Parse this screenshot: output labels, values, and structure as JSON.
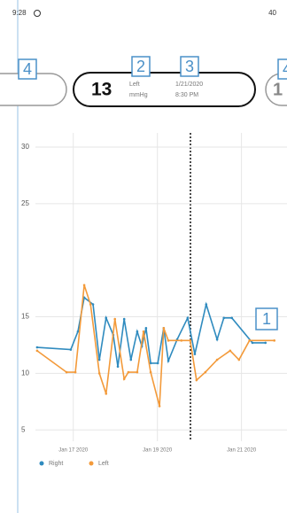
{
  "status_bar": {
    "time": "9:28",
    "battery": "40"
  },
  "callouts": [
    "4",
    "2",
    "3",
    "4",
    "1"
  ],
  "card": {
    "value": "13",
    "side": "Left",
    "unit": "mmHg",
    "date": "1/21/2020",
    "time": "8:30 PM"
  },
  "next_card": {
    "value": "1"
  },
  "chart_data": {
    "type": "line",
    "xlim": [
      16.1,
      21.85
    ],
    "xticks": [
      {
        "value": 17,
        "label": "Jan 17 2020"
      },
      {
        "value": 19,
        "label": "Jan 19 2020"
      },
      {
        "value": 21,
        "label": "Jan 21 2020"
      }
    ],
    "ylim": [
      4,
      30
    ],
    "yticks": [
      5,
      10,
      15,
      25,
      30
    ],
    "grid": true,
    "legend": "bottom-left",
    "series": [
      {
        "name": "Right",
        "color": "#2f8bbf",
        "x": [
          16.14,
          16.94,
          17.11,
          17.26,
          17.47,
          17.62,
          17.78,
          17.95,
          18.06,
          18.21,
          18.37,
          18.52,
          18.63,
          18.73,
          18.84,
          19.01,
          19.15,
          19.26,
          19.47,
          19.72,
          19.89,
          20.16,
          20.42,
          20.58,
          20.77,
          21.26,
          21.57
        ],
        "values": [
          12.3,
          12.1,
          13.7,
          16.7,
          16.1,
          11.2,
          14.9,
          13.4,
          10.6,
          14.8,
          11.2,
          13.7,
          12.4,
          14,
          10.9,
          10.9,
          14,
          11.1,
          13,
          14.9,
          11.7,
          16.1,
          13,
          14.9,
          14.9,
          12.7,
          12.7
        ]
      },
      {
        "name": "Left",
        "color": "#f39a3a",
        "x": [
          16.14,
          16.84,
          17.05,
          17.26,
          17.41,
          17.62,
          17.78,
          17.99,
          18.21,
          18.31,
          18.52,
          18.67,
          18.84,
          19.05,
          19.15,
          19.26,
          19.57,
          19.78,
          19.93,
          20.14,
          20.42,
          20.73,
          20.94,
          21.19,
          21.78
        ],
        "values": [
          12,
          10.1,
          10.1,
          17.8,
          16.1,
          10,
          8.2,
          14.8,
          9.5,
          10.1,
          10.1,
          13.7,
          10.1,
          7.1,
          14,
          12.9,
          12.9,
          12.9,
          9.4,
          10.1,
          11.2,
          12,
          11.2,
          12.9,
          12.9
        ]
      }
    ]
  }
}
